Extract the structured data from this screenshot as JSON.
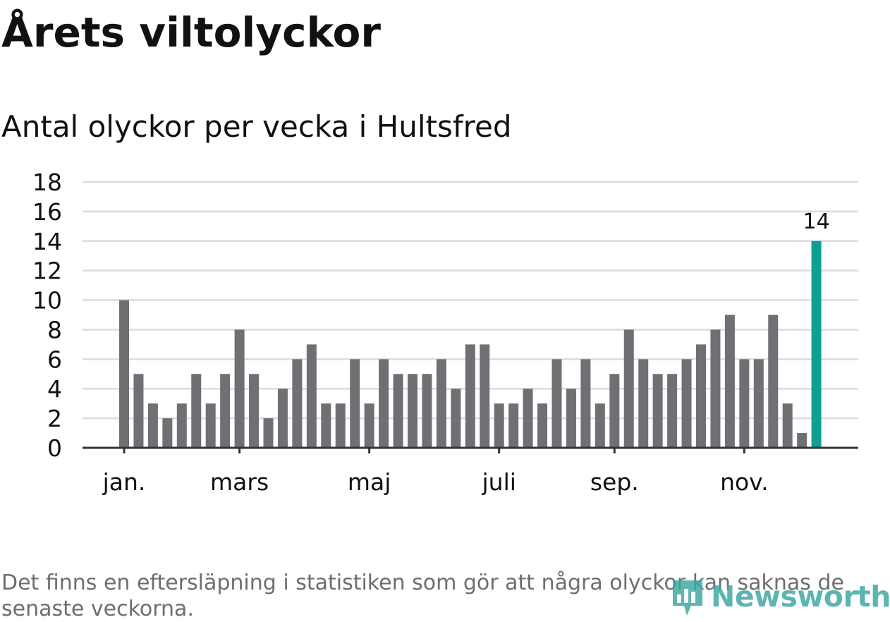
{
  "title": "Årets viltolyckor",
  "subtitle": "Antal olyckor per vecka i Hultsfred",
  "footnote": "Det finns en eftersläpning i statistiken som gör att några olyckor kan saknas de senaste veckorna.",
  "brand": "Newsworthy",
  "colors": {
    "bar": "#706f74",
    "highlight": "#0f9f93",
    "grid": "#dcdcdc",
    "axis": "#333333",
    "text": "#111111"
  },
  "chart_data": {
    "type": "bar",
    "title": "Antal olyckor per vecka i Hultsfred",
    "xlabel": "",
    "ylabel": "",
    "ylim": [
      0,
      18
    ],
    "yticks": [
      0,
      2,
      4,
      6,
      8,
      10,
      12,
      14,
      16,
      18
    ],
    "grid": true,
    "values": [
      10,
      5,
      3,
      2,
      3,
      5,
      3,
      5,
      8,
      5,
      2,
      4,
      6,
      7,
      3,
      3,
      6,
      3,
      6,
      5,
      5,
      5,
      6,
      4,
      7,
      7,
      3,
      3,
      4,
      3,
      6,
      4,
      6,
      3,
      5,
      8,
      6,
      5,
      5,
      6,
      7,
      8,
      9,
      6,
      6,
      9,
      3,
      1,
      14
    ],
    "month_labels": [
      {
        "label": "jan.",
        "week": 1
      },
      {
        "label": "mars",
        "week": 9
      },
      {
        "label": "maj",
        "week": 18
      },
      {
        "label": "juli",
        "week": 27
      },
      {
        "label": "sep.",
        "week": 35
      },
      {
        "label": "nov.",
        "week": 44
      }
    ],
    "highlight_index": 48,
    "highlight_label": "14"
  }
}
